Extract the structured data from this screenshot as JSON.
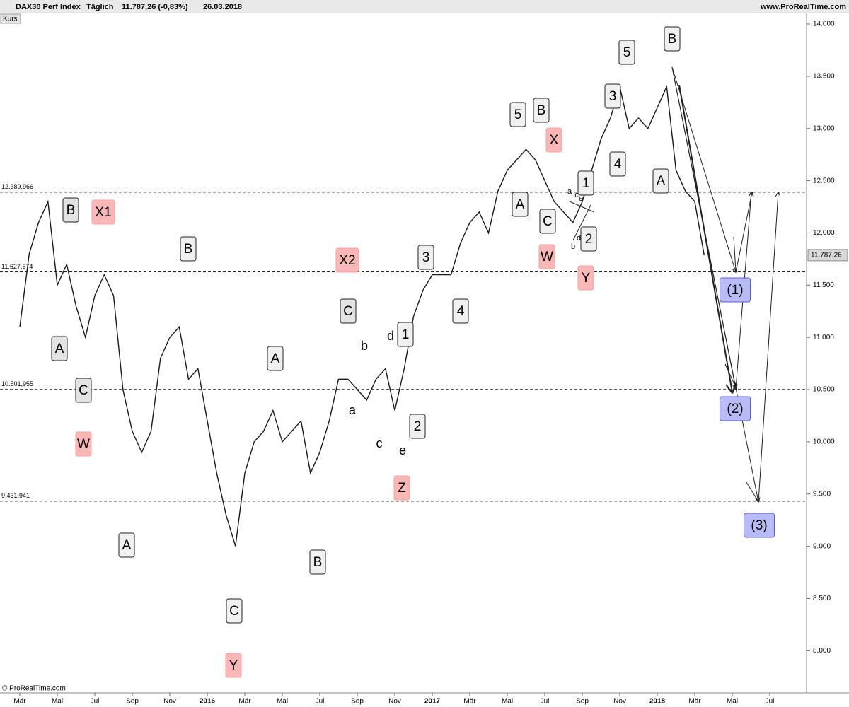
{
  "chart_data": {
    "type": "line",
    "title": "DAX30 Perf Index",
    "period": "Täglich",
    "last_change": "11.787,26 (-0,83%)",
    "date": "26.03.2018",
    "source": "www.ProRealTime.com",
    "panel_label": "Kurs",
    "copyright": "© ProRealTime.com",
    "color": "#1a1a1a",
    "categories": [
      "Mär",
      null,
      null,
      null,
      "Mai",
      null,
      null,
      null,
      "Jul",
      null,
      null,
      null,
      "Sep",
      null,
      null,
      null,
      "Nov",
      null,
      null,
      null,
      "2016",
      null,
      null,
      null,
      "Mär",
      null,
      null,
      null,
      "Mai",
      null,
      null,
      null,
      "Jul",
      null,
      null,
      null,
      "Sep",
      null,
      null,
      null,
      "Nov",
      null,
      null,
      null,
      "2017",
      null,
      null,
      null,
      "Mär",
      null,
      null,
      null,
      "Mai",
      null,
      null,
      null,
      "Jul",
      null,
      null,
      null,
      "Sep",
      null,
      null,
      null,
      "Nov",
      null,
      null,
      null,
      "2018",
      null,
      null,
      null,
      "Mär",
      null,
      null,
      null,
      "Mai",
      null,
      null,
      null,
      "Jul",
      null,
      null,
      null
    ],
    "values": [
      11100,
      11800,
      12100,
      12300,
      11500,
      11700,
      11300,
      11000,
      11400,
      11600,
      11400,
      10500,
      10100,
      9900,
      10100,
      10800,
      11000,
      11100,
      10600,
      10700,
      10200,
      9700,
      9300,
      9000,
      9700,
      10000,
      10100,
      10300,
      10000,
      10100,
      10200,
      9700,
      9900,
      10200,
      10600,
      10600,
      10500,
      10400,
      10600,
      10700,
      10300,
      10700,
      11200,
      11450,
      11600,
      11600,
      11600,
      11900,
      12100,
      12200,
      12000,
      12400,
      12600,
      12700,
      12800,
      12700,
      12500,
      12300,
      12200,
      12100,
      12300,
      12600,
      12900,
      13100,
      13400,
      13000,
      13100,
      13000,
      13200,
      13400,
      12600,
      12400,
      12300,
      11787.26,
      null,
      null,
      null,
      null,
      null,
      null,
      null,
      null,
      null,
      null
    ],
    "ylim": [
      7630,
      14095
    ],
    "yticks": [
      {
        "value": 8000,
        "label": "8.000"
      },
      {
        "value": 8500,
        "label": "8.500"
      },
      {
        "value": 9000,
        "label": "9.000"
      },
      {
        "value": 9500,
        "label": "9.500"
      },
      {
        "value": 10000,
        "label": "10.000"
      },
      {
        "value": 10500,
        "label": "10.500"
      },
      {
        "value": 11000,
        "label": "11.000"
      },
      {
        "value": 11500,
        "label": "11.500"
      },
      {
        "value": 12000,
        "label": "12.000"
      },
      {
        "value": 12500,
        "label": "12.500"
      },
      {
        "value": 13000,
        "label": "13.000"
      },
      {
        "value": 13500,
        "label": "13.500"
      },
      {
        "value": 14000,
        "label": "14.000"
      }
    ],
    "grid": false,
    "last_price": {
      "value": 11787.26,
      "label": "11.787,26"
    },
    "levels": [
      {
        "value": 12389.966,
        "label": "12.389,966"
      },
      {
        "value": 11627.674,
        "label": "11.627,674"
      },
      {
        "value": 10501.955,
        "label": "10.501,955"
      },
      {
        "value": 9431.941,
        "label": "9.431,941"
      }
    ],
    "annotations": [
      {
        "text": "B",
        "box": "#e3e3e3"
      },
      {
        "text": "X1",
        "box": "#f9b7b7"
      },
      {
        "text": "A",
        "box": "#e3e3e3"
      },
      {
        "text": "C",
        "box": "#e3e3e3"
      },
      {
        "text": "W",
        "box": "#f9b7b7"
      },
      {
        "text": "A",
        "box": "#f0f0f0"
      },
      {
        "text": "B",
        "box": "#f0f0f0"
      },
      {
        "text": "C",
        "box": "#f0f0f0"
      },
      {
        "text": "Y",
        "box": "#f9b7b7"
      },
      {
        "text": "A",
        "box": "#f0f0f0"
      },
      {
        "text": "B",
        "box": "#f0f0f0"
      },
      {
        "text": "X2",
        "box": "#f9b7b7"
      },
      {
        "text": "C",
        "box": "#e3e3e3"
      },
      {
        "text": "a"
      },
      {
        "text": "b"
      },
      {
        "text": "c"
      },
      {
        "text": "d"
      },
      {
        "text": "e"
      },
      {
        "text": "Z",
        "box": "#f9b7b7"
      },
      {
        "text": "1",
        "box": "#f0f0f0"
      },
      {
        "text": "2",
        "box": "#f0f0f0"
      },
      {
        "text": "3",
        "box": "#f0f0f0"
      },
      {
        "text": "4",
        "box": "#f0f0f0"
      },
      {
        "text": "5",
        "box": "#f0f0f0"
      },
      {
        "text": "B",
        "box": "#f0f0f0"
      },
      {
        "text": "X",
        "box": "#f9b7b7"
      },
      {
        "text": "A",
        "box": "#f0f0f0"
      },
      {
        "text": "C",
        "box": "#f0f0f0"
      },
      {
        "text": "W",
        "box": "#f9b7b7"
      },
      {
        "text": "Y",
        "box": "#f9b7b7"
      },
      {
        "text": "1",
        "box": "#f0f0f0"
      },
      {
        "text": "2",
        "box": "#f0f0f0"
      },
      {
        "text": "a"
      },
      {
        "text": "c"
      },
      {
        "text": "e"
      },
      {
        "text": "b"
      },
      {
        "text": "d"
      },
      {
        "text": "3",
        "box": "#f0f0f0"
      },
      {
        "text": "5",
        "box": "#f0f0f0"
      },
      {
        "text": "4",
        "box": "#f0f0f0"
      },
      {
        "text": "B",
        "box": "#f0f0f0"
      },
      {
        "text": "A",
        "box": "#f0f0f0"
      },
      {
        "text": "(1)",
        "box": "#b8bbf6"
      },
      {
        "text": "(2)",
        "box": "#b8bbf6"
      },
      {
        "text": "(3)",
        "box": "#b8bbf6"
      }
    ]
  }
}
